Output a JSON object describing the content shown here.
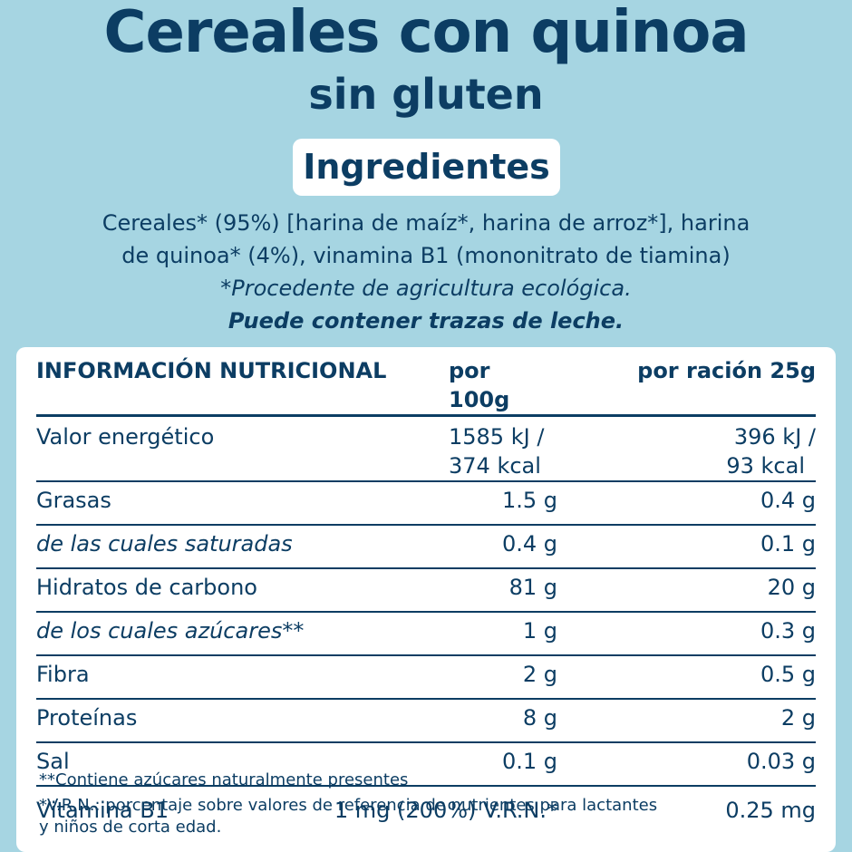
{
  "title": "Cereales con quinoa",
  "subtitle": "sin gluten",
  "ingredients": {
    "heading": "Ingredientes",
    "line1": "Cereales* (95%) [harina de maíz*, harina de arroz*], harina",
    "line2": "de quinoa* (4%), vinamina B1 (mononitrato de tiamina)",
    "organic_note": "*Procedente de agricultura ecológica.",
    "allergen_note": "Puede contener trazas de leche."
  },
  "nutrition": {
    "headers": {
      "name": "INFORMACIÓN NUTRICIONAL",
      "per100": "por 100g",
      "perServing": "por ración 25g"
    },
    "energy": {
      "name": "Valor energético",
      "per100_kj": "1585 kJ /",
      "per100_kcal": "374 kcal",
      "serving_kj": "396 kJ /",
      "serving_kcal": "93 kcal"
    },
    "rows": [
      {
        "name": "Grasas",
        "per100": "1.5 g",
        "serving": "0.4 g"
      },
      {
        "name": "de las cuales saturadas",
        "per100": "0.4 g",
        "serving": "0.1 g"
      },
      {
        "name": "Hidratos de carbono",
        "per100": "81 g",
        "serving": "20 g"
      },
      {
        "name": "de los cuales azúcares**",
        "per100": "1 g",
        "serving": "0.3 g"
      },
      {
        "name": "Fibra",
        "per100": "2 g",
        "serving": "0.5 g"
      },
      {
        "name": "Proteínas",
        "per100": "8 g",
        "serving": "2 g"
      },
      {
        "name": "Sal",
        "per100": "0.1 g",
        "serving": "0.03 g"
      }
    ],
    "vitamin": {
      "name": "Vitamina B1",
      "per100": "1 mg (200%) V.R.N.*",
      "serving": "0.25 mg"
    }
  },
  "footnotes": {
    "sugars": "**Contiene azúcares naturalmente presentes",
    "vrn_line1": "*V.R.N.: porcentaje sobre valores de referencia de nutrientes para lactantes",
    "vrn_line2": "y niños de corta edad."
  },
  "colors": {
    "background": "#a6d5e2",
    "text": "#0c3d63",
    "panel": "#ffffff"
  }
}
